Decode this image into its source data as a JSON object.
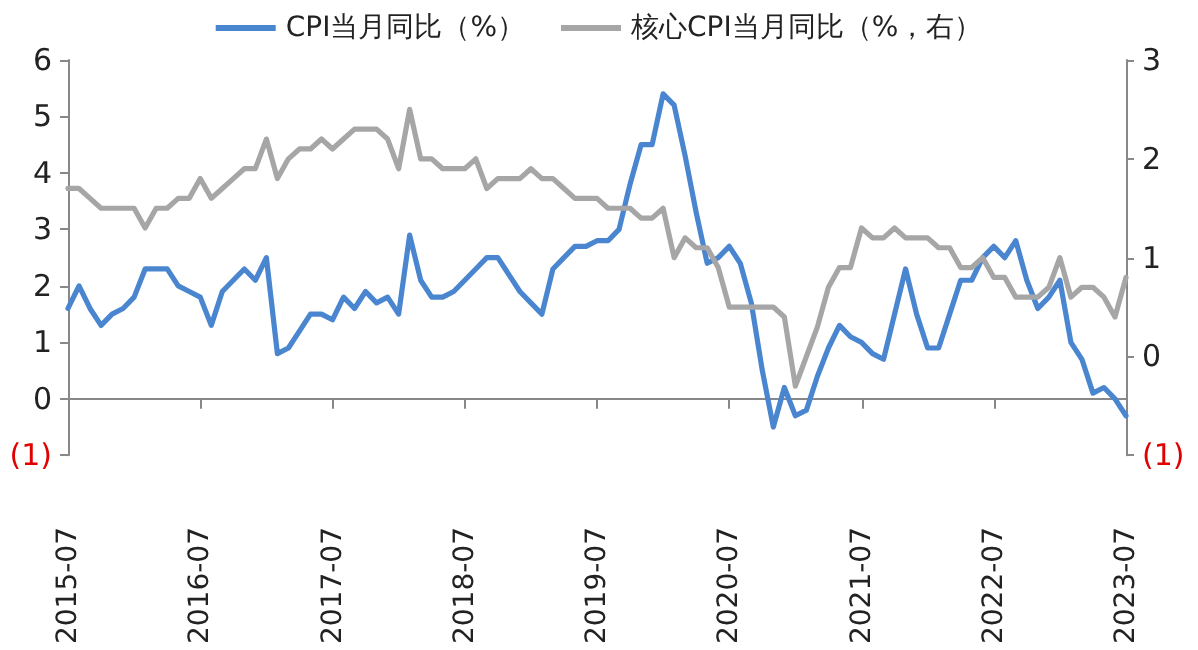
{
  "chart_data": {
    "type": "line",
    "categories": [
      "2015-07",
      null,
      null,
      null,
      null,
      null,
      null,
      null,
      null,
      null,
      null,
      null,
      "2016-07",
      null,
      null,
      null,
      null,
      null,
      null,
      null,
      null,
      null,
      null,
      null,
      "2017-07",
      null,
      null,
      null,
      null,
      null,
      null,
      null,
      null,
      null,
      null,
      null,
      "2018-07",
      null,
      null,
      null,
      null,
      null,
      null,
      null,
      null,
      null,
      null,
      null,
      "2019-07",
      null,
      null,
      null,
      null,
      null,
      null,
      null,
      null,
      null,
      null,
      null,
      "2020-07",
      null,
      null,
      null,
      null,
      null,
      null,
      null,
      null,
      null,
      null,
      null,
      "2021-07",
      null,
      null,
      null,
      null,
      null,
      null,
      null,
      null,
      null,
      null,
      null,
      "2022-07",
      null,
      null,
      null,
      null,
      null,
      null,
      null,
      null,
      null,
      null,
      null,
      "2023-07"
    ],
    "series": [
      {
        "name": "CPI当月同比（%）",
        "color": "#4a86d0",
        "values": [
          1.6,
          2.0,
          1.6,
          1.3,
          1.5,
          1.6,
          1.8,
          2.3,
          2.3,
          2.3,
          2.0,
          1.9,
          1.8,
          1.3,
          1.9,
          2.1,
          2.3,
          2.1,
          2.5,
          0.8,
          0.9,
          1.2,
          1.5,
          1.5,
          1.4,
          1.8,
          1.6,
          1.9,
          1.7,
          1.8,
          1.5,
          2.9,
          2.1,
          1.8,
          1.8,
          1.9,
          2.1,
          2.3,
          2.5,
          2.5,
          2.2,
          1.9,
          1.7,
          1.5,
          2.3,
          2.5,
          2.7,
          2.7,
          2.8,
          2.8,
          3.0,
          3.8,
          4.5,
          4.5,
          5.4,
          5.2,
          4.3,
          3.3,
          2.4,
          2.5,
          2.7,
          2.4,
          1.7,
          0.5,
          -0.5,
          0.2,
          -0.3,
          -0.2,
          0.4,
          0.9,
          1.3,
          1.1,
          1.0,
          0.8,
          0.7,
          1.5,
          2.3,
          1.5,
          0.9,
          0.9,
          1.5,
          2.1,
          2.1,
          2.5,
          2.7,
          2.5,
          2.8,
          2.1,
          1.6,
          1.8,
          2.1,
          1.0,
          0.7,
          0.1,
          0.2,
          0.0,
          -0.3
        ]
      },
      {
        "name": "核心CPI当月同比（%，右）",
        "color": "#a6a6a6",
        "axis": "y2",
        "values": [
          1.7,
          1.7,
          1.6,
          1.5,
          1.5,
          1.5,
          1.5,
          1.3,
          1.5,
          1.5,
          1.6,
          1.6,
          1.8,
          1.6,
          1.7,
          1.8,
          1.9,
          1.9,
          2.2,
          1.8,
          2.0,
          2.1,
          2.1,
          2.2,
          2.1,
          2.2,
          2.3,
          2.3,
          2.3,
          2.2,
          1.9,
          2.5,
          2.0,
          2.0,
          1.9,
          1.9,
          1.9,
          2.0,
          1.7,
          1.8,
          1.8,
          1.8,
          1.9,
          1.8,
          1.8,
          1.7,
          1.6,
          1.6,
          1.6,
          1.5,
          1.5,
          1.5,
          1.4,
          1.4,
          1.5,
          1.0,
          1.2,
          1.1,
          1.1,
          0.9,
          0.5,
          0.5,
          0.5,
          0.5,
          0.5,
          0.4,
          -0.3,
          0.0,
          0.3,
          0.7,
          0.9,
          0.9,
          1.3,
          1.2,
          1.2,
          1.3,
          1.2,
          1.2,
          1.2,
          1.1,
          1.1,
          0.9,
          0.9,
          1.0,
          0.8,
          0.8,
          0.6,
          0.6,
          0.6,
          0.7,
          1.0,
          0.6,
          0.7,
          0.7,
          0.6,
          0.4,
          0.8
        ]
      }
    ],
    "ylim": [
      -1,
      6
    ],
    "yticks": [
      {
        "value": -1,
        "label": "(1)"
      },
      0,
      1,
      2,
      3,
      4,
      5,
      6
    ],
    "y2lim": [
      -1,
      3
    ],
    "y2ticks": [
      {
        "value": -1,
        "label": "(1)"
      },
      0,
      1,
      2,
      3
    ],
    "legend": "top",
    "marker": "none",
    "line_style": "solid"
  }
}
